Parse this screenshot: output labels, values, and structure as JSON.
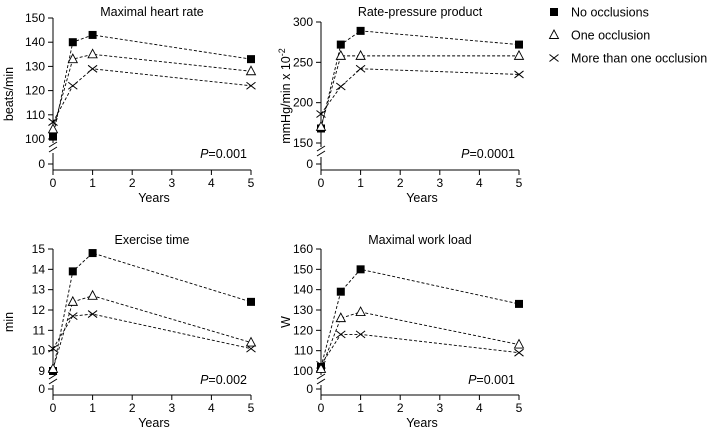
{
  "legend": {
    "items": [
      {
        "label": "No occlusions",
        "marker": "square"
      },
      {
        "label": "One occlusion",
        "marker": "triangle"
      },
      {
        "label": "More than one occlusion",
        "marker": "cross"
      }
    ]
  },
  "chart_data": [
    {
      "type": "line",
      "title": "Maximal heart rate",
      "xlabel": "Years",
      "ylabel": "beats/min",
      "x": [
        0,
        0.5,
        1,
        5
      ],
      "xticks": [
        0,
        1,
        2,
        3,
        4,
        5
      ],
      "xlim": [
        0,
        5
      ],
      "yticks": [
        0,
        100,
        110,
        120,
        130,
        140,
        150
      ],
      "ylim": [
        100,
        150
      ],
      "axis_break": true,
      "annotation": {
        "italic": "P",
        "text": "=0.001"
      },
      "series": [
        {
          "name": "No occlusions",
          "marker": "square",
          "values": [
            101,
            140,
            143,
            133
          ]
        },
        {
          "name": "One occlusion",
          "marker": "triangle",
          "values": [
            104,
            133,
            135,
            128
          ]
        },
        {
          "name": "More than one occlusion",
          "marker": "cross",
          "values": [
            107,
            122,
            129,
            122
          ]
        }
      ]
    },
    {
      "type": "line",
      "title": "Rate-pressure product",
      "xlabel": "Years",
      "ylabel": "mmHg/min x 10",
      "ylabel_sup": "-2",
      "x": [
        0,
        0.5,
        1,
        5
      ],
      "xticks": [
        0,
        1,
        2,
        3,
        4,
        5
      ],
      "xlim": [
        0,
        5
      ],
      "yticks": [
        0,
        150,
        200,
        250,
        300
      ],
      "ylim": [
        150,
        300
      ],
      "axis_break": true,
      "annotation": {
        "italic": "P",
        "text": "=0.0001"
      },
      "series": [
        {
          "name": "No occlusions",
          "marker": "square",
          "values": [
            168,
            272,
            289,
            272
          ]
        },
        {
          "name": "One occlusion",
          "marker": "triangle",
          "values": [
            170,
            258,
            258,
            258
          ]
        },
        {
          "name": "More than one occlusion",
          "marker": "cross",
          "values": [
            186,
            220,
            242,
            235
          ]
        }
      ]
    },
    {
      "type": "line",
      "title": "Exercise time",
      "xlabel": "Years",
      "ylabel": "min",
      "x": [
        0,
        0.5,
        1,
        5
      ],
      "xticks": [
        0,
        1,
        2,
        3,
        4,
        5
      ],
      "xlim": [
        0,
        5
      ],
      "yticks": [
        0,
        9,
        10,
        11,
        12,
        13,
        14,
        15
      ],
      "ylim": [
        9,
        15
      ],
      "axis_break": true,
      "annotation": {
        "italic": "P",
        "text": "=0.002"
      },
      "series": [
        {
          "name": "No occlusions",
          "marker": "square",
          "values": [
            9.0,
            13.9,
            14.8,
            12.4
          ]
        },
        {
          "name": "One occlusion",
          "marker": "triangle",
          "values": [
            9.1,
            12.4,
            12.7,
            10.4
          ]
        },
        {
          "name": "More than one occlusion",
          "marker": "cross",
          "values": [
            10.1,
            11.7,
            11.8,
            10.1
          ]
        }
      ]
    },
    {
      "type": "line",
      "title": "Maximal work load",
      "xlabel": "Years",
      "ylabel": "W",
      "x": [
        0,
        0.5,
        1,
        5
      ],
      "xticks": [
        0,
        1,
        2,
        3,
        4,
        5
      ],
      "xlim": [
        0,
        5
      ],
      "yticks": [
        0,
        100,
        110,
        120,
        130,
        140,
        150,
        160
      ],
      "ylim": [
        100,
        160
      ],
      "axis_break": true,
      "annotation": {
        "italic": "P",
        "text": "=0.001"
      },
      "series": [
        {
          "name": "No occlusions",
          "marker": "square",
          "values": [
            102,
            139,
            150,
            133
          ]
        },
        {
          "name": "One occlusion",
          "marker": "triangle",
          "values": [
            101,
            126,
            129,
            113
          ]
        },
        {
          "name": "More than one occlusion",
          "marker": "cross",
          "values": [
            103,
            118,
            118,
            109
          ]
        }
      ]
    }
  ]
}
